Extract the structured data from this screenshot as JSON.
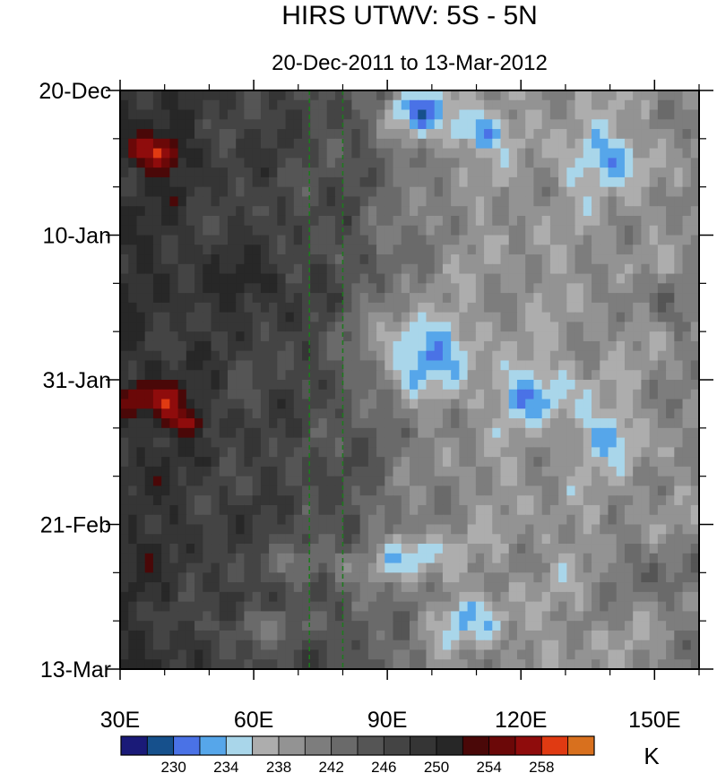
{
  "chart_data": {
    "type": "heatmap",
    "title": "HIRS UTWV: 5S - 5N",
    "subtitle": "20-Dec-2011 to 13-Mar-2012",
    "x_ticks": [
      "30E",
      "60E",
      "90E",
      "120E",
      "150E"
    ],
    "x_tick_values": [
      30,
      60,
      90,
      120,
      150
    ],
    "xlim": [
      30,
      160
    ],
    "y_ticks": [
      "20-Dec",
      "10-Jan",
      "31-Jan",
      "21-Feb",
      "13-Mar"
    ],
    "y_tick_days": [
      0,
      21,
      42,
      63,
      84
    ],
    "ylim_days": [
      0,
      84
    ],
    "reference_lines_lon": [
      72.5,
      80
    ],
    "reference_line_color": "#1e7a1e",
    "colorbar_unit": "K",
    "colorbar_labels": [
      "230",
      "234",
      "238",
      "242",
      "246",
      "250",
      "254",
      "258"
    ],
    "colorbar_levels": [
      228,
      230,
      232,
      234,
      236,
      238,
      240,
      242,
      244,
      246,
      248,
      250,
      252,
      254,
      256,
      258
    ],
    "colorbar_colors": [
      "#1a1a78",
      "#16508c",
      "#4a72e6",
      "#56a6ea",
      "#a9d6ea",
      "#adadad",
      "#939393",
      "#7d7d7d",
      "#6a6a6a",
      "#555555",
      "#444444",
      "#353535",
      "#272727",
      "#4a0808",
      "#6b0808",
      "#8f0c0c",
      "#e03a12",
      "#d8701e"
    ]
  }
}
